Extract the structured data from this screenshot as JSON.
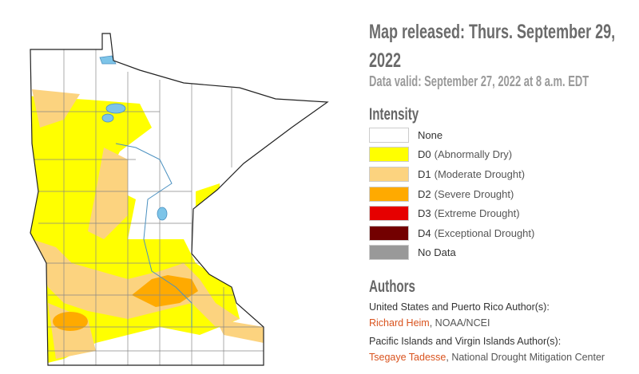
{
  "header": {
    "released": "Map released: Thurs. September 29, 2022",
    "valid": "Data valid: September 27, 2022 at 8 a.m. EDT"
  },
  "legend": {
    "title": "Intensity",
    "items": [
      {
        "label": "None",
        "color": "#ffffff"
      },
      {
        "code": "D0",
        "label": "(Abnormally Dry)",
        "color": "#ffff00"
      },
      {
        "code": "D1",
        "label": "(Moderate Drought)",
        "color": "#fcd37f"
      },
      {
        "code": "D2",
        "label": "(Severe Drought)",
        "color": "#ffaa00"
      },
      {
        "code": "D3",
        "label": "(Extreme Drought)",
        "color": "#e60000"
      },
      {
        "code": "D4",
        "label": "(Exceptional Drought)",
        "color": "#730000"
      },
      {
        "label": "No Data",
        "color": "#999999"
      }
    ]
  },
  "authors": {
    "title": "Authors",
    "groups": [
      {
        "heading": "United States and Puerto Rico Author(s):",
        "name": "Richard Heim",
        "affiliation": ", NOAA/NCEI"
      },
      {
        "heading": "Pacific Islands and Virgin Islands Author(s):",
        "name": "Tsegaye Tadesse",
        "affiliation": ", National Drought Mitigation Center"
      }
    ]
  }
}
